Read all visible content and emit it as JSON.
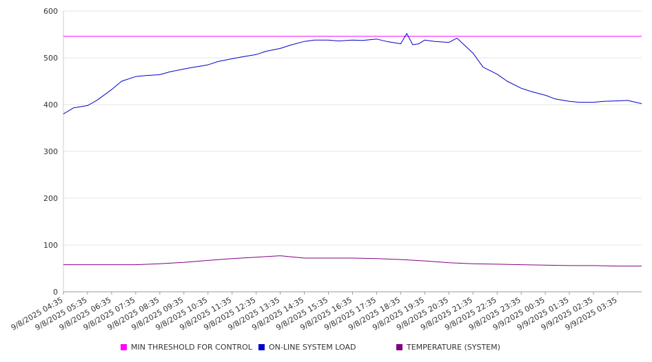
{
  "chart_data": {
    "type": "line",
    "xlabel": "",
    "ylabel": "",
    "ylim": [
      0,
      600
    ],
    "yticks": [
      "0",
      "100",
      "200",
      "300",
      "400",
      "500",
      "600"
    ],
    "grid": true,
    "legend_position": "bottom",
    "x_tick_labels": [
      "9/8/2025 04:35",
      "9/8/2025 05:35",
      "9/8/2025 06:35",
      "9/8/2025 07:35",
      "9/8/2025 08:35",
      "9/8/2025 09:35",
      "9/8/2025 10:35",
      "9/8/2025 11:35",
      "9/8/2025 12:35",
      "9/8/2025 13:35",
      "9/8/2025 14:35",
      "9/8/2025 15:35",
      "9/8/2025 16:35",
      "9/8/2025 17:35",
      "9/8/2025 18:35",
      "9/8/2025 19:35",
      "9/8/2025 20:35",
      "9/8/2025 21:35",
      "9/8/2025 22:35",
      "9/8/2025 23:35",
      "9/9/2025 00:35",
      "9/9/2025 01:35",
      "9/9/2025 02:35",
      "9/9/2025 03:35"
    ],
    "series": [
      {
        "name": "MIN THRESHOLD FOR CONTROL",
        "color": "#ff00ff",
        "x": [
          "9/8/2025 04:35",
          "9/9/2025 04:35"
        ],
        "values": [
          546,
          546
        ]
      },
      {
        "name": "ON-LINE SYSTEM LOAD",
        "color": "#0000cc",
        "x": [
          "9/8/2025 04:35",
          "9/8/2025 05:00",
          "9/8/2025 05:35",
          "9/8/2025 06:00",
          "9/8/2025 06:35",
          "9/8/2025 07:00",
          "9/8/2025 07:35",
          "9/8/2025 08:00",
          "9/8/2025 08:35",
          "9/8/2025 09:00",
          "9/8/2025 09:35",
          "9/8/2025 10:00",
          "9/8/2025 10:35",
          "9/8/2025 11:00",
          "9/8/2025 11:35",
          "9/8/2025 12:00",
          "9/8/2025 12:35",
          "9/8/2025 13:00",
          "9/8/2025 13:35",
          "9/8/2025 14:00",
          "9/8/2025 14:35",
          "9/8/2025 15:00",
          "9/8/2025 15:35",
          "9/8/2025 16:00",
          "9/8/2025 16:35",
          "9/8/2025 17:00",
          "9/8/2025 17:35",
          "9/8/2025 18:00",
          "9/8/2025 18:35",
          "9/8/2025 18:50",
          "9/8/2025 19:05",
          "9/8/2025 19:20",
          "9/8/2025 19:35",
          "9/8/2025 20:00",
          "9/8/2025 20:35",
          "9/8/2025 20:55",
          "9/8/2025 21:35",
          "9/8/2025 22:00",
          "9/8/2025 22:35",
          "9/8/2025 23:00",
          "9/8/2025 23:35",
          "9/9/2025 00:00",
          "9/9/2025 00:35",
          "9/9/2025 01:00",
          "9/9/2025 01:35",
          "9/9/2025 02:00",
          "9/9/2025 02:35",
          "9/9/2025 03:00",
          "9/9/2025 03:35",
          "9/9/2025 04:00",
          "9/9/2025 04:35"
        ],
        "values": [
          380,
          393,
          398,
          410,
          432,
          450,
          460,
          462,
          464,
          470,
          476,
          480,
          485,
          492,
          498,
          502,
          507,
          514,
          520,
          527,
          535,
          538,
          538,
          536,
          538,
          537,
          540,
          535,
          530,
          552,
          528,
          530,
          538,
          535,
          533,
          542,
          510,
          480,
          465,
          450,
          435,
          428,
          420,
          412,
          407,
          405,
          405,
          407,
          408,
          409,
          402
        ]
      },
      {
        "name": "TEMPERATURE (SYSTEM)",
        "color": "#800080",
        "x": [
          "9/8/2025 04:35",
          "9/8/2025 05:35",
          "9/8/2025 06:35",
          "9/8/2025 07:35",
          "9/8/2025 08:35",
          "9/8/2025 09:35",
          "9/8/2025 10:35",
          "9/8/2025 11:35",
          "9/8/2025 12:35",
          "9/8/2025 13:35",
          "9/8/2025 14:35",
          "9/8/2025 15:35",
          "9/8/2025 16:35",
          "9/8/2025 17:35",
          "9/8/2025 18:35",
          "9/8/2025 19:35",
          "9/8/2025 20:35",
          "9/8/2025 21:35",
          "9/8/2025 22:35",
          "9/8/2025 23:35",
          "9/9/2025 00:35",
          "9/9/2025 01:35",
          "9/9/2025 02:35",
          "9/9/2025 03:35",
          "9/9/2025 04:35"
        ],
        "values": [
          58,
          58,
          58,
          58,
          60,
          63,
          67,
          71,
          74,
          77,
          72,
          72,
          72,
          71,
          69,
          66,
          62,
          60,
          59,
          58,
          57,
          56,
          56,
          55,
          55
        ]
      }
    ]
  }
}
